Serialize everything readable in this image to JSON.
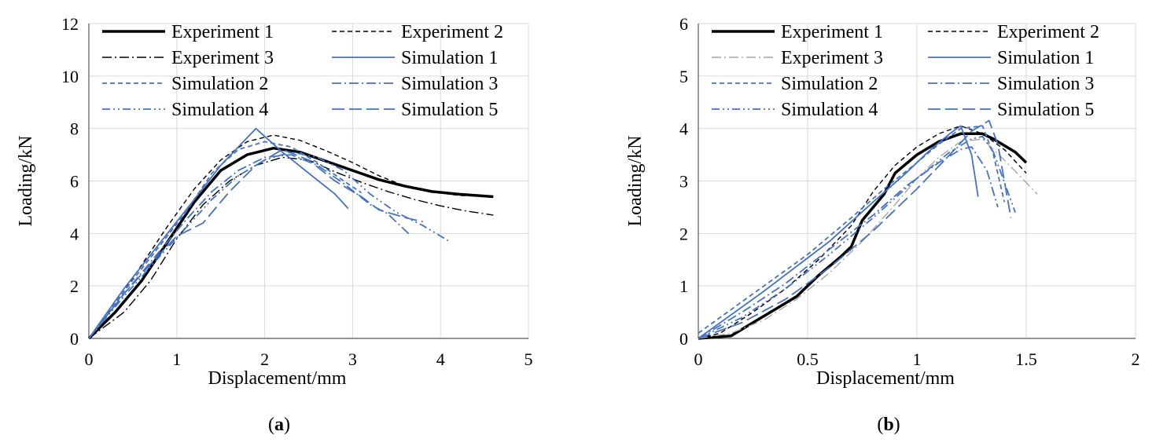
{
  "colors": {
    "black": "#000000",
    "blue": "#4472c4",
    "gray": "#a6a6a6",
    "grid": "#d9d9d9"
  },
  "chart_data": [
    {
      "type": "line",
      "caption": "a",
      "xlabel": "Displacement/mm",
      "ylabel": "Loading/kN",
      "xlim": [
        0,
        5
      ],
      "ylim": [
        0,
        12
      ],
      "xticks": [
        0,
        1,
        2,
        3,
        4,
        5
      ],
      "yticks": [
        0,
        2,
        4,
        6,
        8,
        10,
        12
      ],
      "grid": true,
      "legend": "top",
      "series": [
        {
          "name": "Experiment 1",
          "style": "exp1",
          "points": [
            [
              0,
              0
            ],
            [
              0.3,
              1.0
            ],
            [
              0.6,
              2.2
            ],
            [
              0.9,
              3.7
            ],
            [
              1.2,
              5.2
            ],
            [
              1.5,
              6.4
            ],
            [
              1.8,
              7.0
            ],
            [
              2.1,
              7.25
            ],
            [
              2.4,
              7.1
            ],
            [
              2.7,
              6.75
            ],
            [
              3.0,
              6.4
            ],
            [
              3.3,
              6.05
            ],
            [
              3.6,
              5.8
            ],
            [
              3.9,
              5.6
            ],
            [
              4.2,
              5.5
            ],
            [
              4.6,
              5.4
            ]
          ]
        },
        {
          "name": "Experiment 2",
          "style": "exp2",
          "points": [
            [
              0,
              0
            ],
            [
              0.3,
              1.3
            ],
            [
              0.6,
              2.8
            ],
            [
              0.9,
              4.3
            ],
            [
              1.2,
              5.7
            ],
            [
              1.5,
              6.8
            ],
            [
              1.8,
              7.5
            ],
            [
              2.1,
              7.75
            ],
            [
              2.4,
              7.55
            ],
            [
              2.7,
              7.15
            ],
            [
              3.0,
              6.7
            ],
            [
              3.3,
              6.2
            ],
            [
              3.6,
              5.8
            ],
            [
              3.9,
              5.6
            ],
            [
              4.2,
              5.45
            ],
            [
              4.6,
              5.4
            ]
          ]
        },
        {
          "name": "Experiment 3",
          "style": "exp3",
          "points": [
            [
              0,
              0
            ],
            [
              0.4,
              1.0
            ],
            [
              0.7,
              2.2
            ],
            [
              1.0,
              3.8
            ],
            [
              1.3,
              5.1
            ],
            [
              1.6,
              6.0
            ],
            [
              1.9,
              6.6
            ],
            [
              2.2,
              6.9
            ],
            [
              2.5,
              6.8
            ],
            [
              2.8,
              6.35
            ],
            [
              3.1,
              5.95
            ],
            [
              3.4,
              5.6
            ],
            [
              3.7,
              5.3
            ],
            [
              4.0,
              5.05
            ],
            [
              4.3,
              4.85
            ],
            [
              4.6,
              4.7
            ]
          ]
        },
        {
          "name": "Simulation 1",
          "style": "sim1",
          "points": [
            [
              0,
              0
            ],
            [
              0.4,
              1.9
            ],
            [
              0.8,
              3.6
            ],
            [
              1.2,
              5.3
            ],
            [
              1.5,
              6.6
            ],
            [
              1.7,
              7.3
            ],
            [
              1.9,
              8.0
            ],
            [
              2.0,
              7.7
            ],
            [
              2.2,
              7.1
            ],
            [
              2.5,
              6.3
            ],
            [
              2.8,
              5.5
            ],
            [
              2.95,
              4.95
            ]
          ]
        },
        {
          "name": "Simulation 2",
          "style": "sim2",
          "points": [
            [
              0,
              0
            ],
            [
              0.4,
              1.8
            ],
            [
              0.8,
              3.5
            ],
            [
              1.1,
              4.8
            ],
            [
              1.4,
              6.3
            ],
            [
              1.7,
              7.2
            ],
            [
              2.0,
              7.5
            ],
            [
              2.3,
              7.3
            ],
            [
              2.6,
              6.7
            ],
            [
              2.9,
              6.0
            ],
            [
              3.1,
              5.55
            ]
          ]
        },
        {
          "name": "Simulation 3",
          "style": "sim3",
          "points": [
            [
              0,
              0
            ],
            [
              0.4,
              1.7
            ],
            [
              0.8,
              3.3
            ],
            [
              1.1,
              4.5
            ],
            [
              1.4,
              5.6
            ],
            [
              1.7,
              6.4
            ],
            [
              2.0,
              6.9
            ],
            [
              2.3,
              7.0
            ],
            [
              2.6,
              6.6
            ],
            [
              2.9,
              5.9
            ],
            [
              3.2,
              5.1
            ],
            [
              3.4,
              4.75
            ],
            [
              3.65,
              3.95
            ]
          ]
        },
        {
          "name": "Simulation 4",
          "style": "sim4",
          "points": [
            [
              0,
              0
            ],
            [
              0.4,
              1.6
            ],
            [
              0.8,
              3.1
            ],
            [
              1.1,
              4.2
            ],
            [
              1.4,
              5.3
            ],
            [
              1.7,
              6.2
            ],
            [
              2.0,
              6.8
            ],
            [
              2.3,
              7.1
            ],
            [
              2.6,
              6.9
            ],
            [
              2.9,
              6.4
            ],
            [
              3.2,
              5.5
            ],
            [
              3.5,
              4.8
            ],
            [
              3.8,
              4.3
            ],
            [
              4.1,
              3.7
            ]
          ]
        },
        {
          "name": "Simulation 5",
          "style": "sim5",
          "points": [
            [
              0,
              0
            ],
            [
              0.4,
              1.7
            ],
            [
              0.8,
              3.2
            ],
            [
              1.0,
              3.9
            ],
            [
              1.3,
              4.4
            ],
            [
              1.6,
              5.6
            ],
            [
              1.9,
              6.6
            ],
            [
              2.2,
              7.2
            ],
            [
              2.5,
              6.8
            ],
            [
              2.8,
              6.0
            ],
            [
              3.1,
              5.4
            ],
            [
              3.3,
              4.9
            ],
            [
              3.6,
              4.6
            ],
            [
              3.8,
              4.45
            ]
          ]
        }
      ]
    },
    {
      "type": "line",
      "caption": "b",
      "xlabel": "Displacement/mm",
      "ylabel": "Loading/kN",
      "xlim": [
        0,
        2
      ],
      "ylim": [
        0,
        6
      ],
      "xticks": [
        0,
        0.5,
        1,
        1.5,
        2
      ],
      "yticks": [
        0,
        1,
        2,
        3,
        4,
        5,
        6
      ],
      "grid": true,
      "legend": "top",
      "series": [
        {
          "name": "Experiment 1",
          "style": "exp1",
          "points": [
            [
              0,
              0
            ],
            [
              0.15,
              0.05
            ],
            [
              0.25,
              0.3
            ],
            [
              0.35,
              0.55
            ],
            [
              0.45,
              0.8
            ],
            [
              0.55,
              1.2
            ],
            [
              0.65,
              1.55
            ],
            [
              0.7,
              1.75
            ],
            [
              0.75,
              2.25
            ],
            [
              0.85,
              2.75
            ],
            [
              0.9,
              3.15
            ],
            [
              1.0,
              3.5
            ],
            [
              1.1,
              3.75
            ],
            [
              1.2,
              3.9
            ],
            [
              1.3,
              3.9
            ],
            [
              1.35,
              3.8
            ],
            [
              1.45,
              3.55
            ],
            [
              1.5,
              3.35
            ]
          ]
        },
        {
          "name": "Experiment 2",
          "style": "exp2",
          "points": [
            [
              0,
              0
            ],
            [
              0.1,
              0.1
            ],
            [
              0.25,
              0.5
            ],
            [
              0.4,
              0.95
            ],
            [
              0.55,
              1.5
            ],
            [
              0.7,
              2.15
            ],
            [
              0.8,
              2.8
            ],
            [
              0.9,
              3.3
            ],
            [
              1.0,
              3.65
            ],
            [
              1.1,
              3.9
            ],
            [
              1.2,
              4.05
            ],
            [
              1.3,
              3.9
            ],
            [
              1.4,
              3.6
            ],
            [
              1.5,
              3.15
            ]
          ]
        },
        {
          "name": "Experiment 3",
          "style": "exp3",
          "points": [
            [
              0,
              0
            ],
            [
              0.15,
              0.1
            ],
            [
              0.3,
              0.35
            ],
            [
              0.45,
              0.75
            ],
            [
              0.6,
              1.25
            ],
            [
              0.75,
              1.85
            ],
            [
              0.9,
              2.55
            ],
            [
              1.0,
              3.05
            ],
            [
              1.1,
              3.45
            ],
            [
              1.2,
              3.75
            ],
            [
              1.3,
              3.8
            ],
            [
              1.4,
              3.4
            ],
            [
              1.55,
              2.75
            ]
          ]
        },
        {
          "name": "Simulation 1",
          "style": "sim1",
          "points": [
            [
              0,
              0
            ],
            [
              0.3,
              0.9
            ],
            [
              0.6,
              1.85
            ],
            [
              0.8,
              2.6
            ],
            [
              0.95,
              3.15
            ],
            [
              1.05,
              3.55
            ],
            [
              1.15,
              3.9
            ],
            [
              1.2,
              4.05
            ],
            [
              1.25,
              3.5
            ],
            [
              1.28,
              2.7
            ]
          ]
        },
        {
          "name": "Simulation 2",
          "style": "sim2",
          "points": [
            [
              0,
              0.1
            ],
            [
              0.25,
              0.85
            ],
            [
              0.5,
              1.6
            ],
            [
              0.7,
              2.3
            ],
            [
              0.85,
              2.85
            ],
            [
              1.0,
              3.35
            ],
            [
              1.1,
              3.7
            ],
            [
              1.2,
              4.0
            ],
            [
              1.3,
              4.05
            ],
            [
              1.35,
              3.5
            ],
            [
              1.4,
              2.6
            ]
          ]
        },
        {
          "name": "Simulation 3",
          "style": "sim3",
          "points": [
            [
              0,
              0
            ],
            [
              0.2,
              0.5
            ],
            [
              0.4,
              1.05
            ],
            [
              0.6,
              1.7
            ],
            [
              0.8,
              2.35
            ],
            [
              0.95,
              2.9
            ],
            [
              1.1,
              3.35
            ],
            [
              1.2,
              3.6
            ],
            [
              1.25,
              3.65
            ],
            [
              1.32,
              3.2
            ],
            [
              1.37,
              2.5
            ]
          ]
        },
        {
          "name": "Simulation 4",
          "style": "sim4",
          "points": [
            [
              0,
              0
            ],
            [
              0.2,
              0.4
            ],
            [
              0.4,
              0.95
            ],
            [
              0.6,
              1.6
            ],
            [
              0.8,
              2.3
            ],
            [
              1.0,
              3.05
            ],
            [
              1.15,
              3.55
            ],
            [
              1.25,
              3.8
            ],
            [
              1.3,
              3.85
            ],
            [
              1.35,
              3.55
            ],
            [
              1.45,
              2.4
            ]
          ]
        },
        {
          "name": "Simulation 5",
          "style": "sim5",
          "points": [
            [
              0,
              0
            ],
            [
              0.2,
              0.3
            ],
            [
              0.4,
              0.75
            ],
            [
              0.6,
              1.35
            ],
            [
              0.8,
              2.05
            ],
            [
              1.0,
              2.85
            ],
            [
              1.15,
              3.5
            ],
            [
              1.25,
              3.95
            ],
            [
              1.33,
              4.15
            ],
            [
              1.37,
              3.7
            ],
            [
              1.43,
              2.3
            ]
          ]
        }
      ]
    }
  ]
}
